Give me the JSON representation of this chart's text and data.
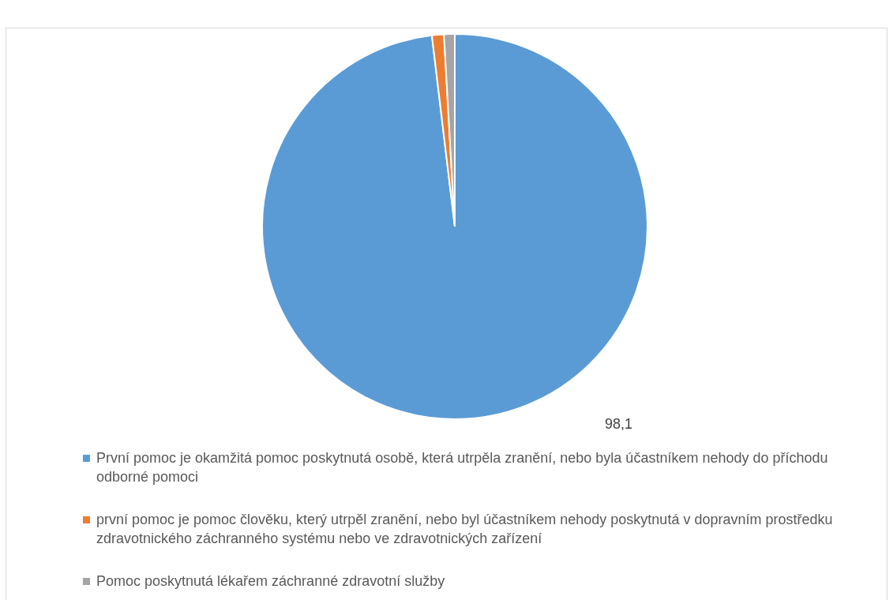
{
  "chart_data": {
    "type": "pie",
    "categories": [
      "První pomoc je okamžitá pomoc poskytnutá osobě, která utrpěla zranění, nebo byla účastníkem nehody do příchodu odborné pomoci",
      "první pomoc je pomoc člověku, který utrpěl zranění, nebo byl účastníkem nehody poskytnutá v dopravním prostředku zdravotnického záchranného systému nebo ve zdravotnických zařízení",
      "Pomoc poskytnutá lékařem záchranné zdravotní služby"
    ],
    "values": [
      98.1,
      1.0,
      0.9
    ],
    "colors": [
      "#5b9bd5",
      "#ed7d31",
      "#a5a5a5"
    ],
    "value_labels": [
      "98,1",
      null,
      null
    ],
    "legend": "bottom"
  }
}
